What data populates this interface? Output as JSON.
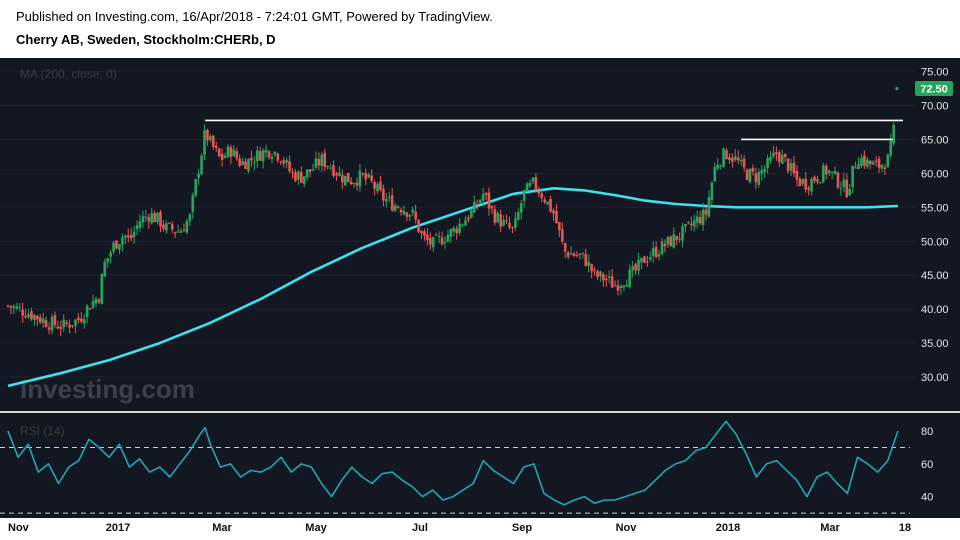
{
  "header": {
    "published": "Published on Investing.com, 16/Apr/2018 - 7:24:01 GMT, Powered by TradingView.",
    "instrument": "Cherry AB, Sweden, Stockholm:CHERb, D"
  },
  "price_panel": {
    "indicator_label": "MA (200, close, 0)",
    "watermark": "Investing.com",
    "last_price_tag": "72.50"
  },
  "rsi_panel": {
    "indicator_label": "RSI (14)"
  },
  "colors": {
    "background": "#131722",
    "up": "#26a65b",
    "down": "#ef5350",
    "ma": "#3fe0f0",
    "rsi": "#1fa8b0",
    "price_tag": "#26a65b"
  },
  "chart_data": [
    {
      "type": "candlestick",
      "scale": "linear",
      "ylim": [
        25,
        77
      ],
      "y_ticks": [
        "30.00",
        "35.00",
        "40.00",
        "45.00",
        "50.00",
        "55.00",
        "60.00",
        "65.00",
        "70.00",
        "75.00"
      ],
      "x_ticks": [
        "Nov",
        "2017",
        "Mar",
        "May",
        "Jul",
        "Sep",
        "Nov",
        "2018",
        "Mar",
        "18"
      ],
      "series": [
        {
          "name": "Price",
          "values": [
            [
              0,
              40.5
            ],
            [
              4,
              39.5
            ],
            [
              8,
              38.0
            ],
            [
              11,
              37.5
            ],
            [
              14,
              38.5
            ],
            [
              16,
              40.5
            ],
            [
              18,
              42.0
            ],
            [
              19,
              46.5
            ],
            [
              21,
              49.5
            ],
            [
              23,
              51.0
            ],
            [
              24,
              50.0
            ],
            [
              26,
              53.0
            ],
            [
              28,
              54.0
            ],
            [
              30,
              53.0
            ],
            [
              31,
              52.0
            ],
            [
              34,
              51.5
            ],
            [
              36,
              53.5
            ],
            [
              37,
              58.0
            ],
            [
              38,
              62.0
            ],
            [
              39,
              66.0
            ],
            [
              40,
              64.5
            ],
            [
              42,
              62.0
            ],
            [
              44,
              63.5
            ],
            [
              46,
              61.5
            ],
            [
              48,
              62.0
            ],
            [
              50,
              63.0
            ],
            [
              52,
              63.5
            ],
            [
              54,
              62.5
            ],
            [
              56,
              60.0
            ],
            [
              58,
              59.5
            ],
            [
              60,
              60.5
            ],
            [
              62,
              62.0
            ],
            [
              64,
              61.0
            ],
            [
              66,
              59.5
            ],
            [
              68,
              59.0
            ],
            [
              70,
              59.5
            ],
            [
              72,
              58.5
            ],
            [
              74,
              56.5
            ],
            [
              76,
              55.5
            ],
            [
              78,
              55.0
            ],
            [
              80,
              54.0
            ],
            [
              82,
              50.5
            ],
            [
              84,
              49.5
            ],
            [
              86,
              50.5
            ],
            [
              88,
              51.5
            ],
            [
              90,
              53.0
            ],
            [
              92,
              54.5
            ],
            [
              94,
              57.0
            ],
            [
              96,
              54.0
            ],
            [
              98,
              52.5
            ],
            [
              100,
              51.5
            ],
            [
              102,
              57.0
            ],
            [
              104,
              58.5
            ],
            [
              106,
              56.5
            ],
            [
              108,
              54.0
            ],
            [
              110,
              48.5
            ],
            [
              112,
              48.0
            ],
            [
              114,
              47.5
            ],
            [
              116,
              45.0
            ],
            [
              118,
              44.5
            ],
            [
              120,
              43.5
            ],
            [
              122,
              44.5
            ],
            [
              124,
              45.5
            ],
            [
              126,
              47.5
            ],
            [
              128,
              48.5
            ],
            [
              130,
              49.5
            ],
            [
              132,
              50.5
            ],
            [
              134,
              51.5
            ],
            [
              136,
              53.0
            ],
            [
              138,
              54.0
            ],
            [
              139,
              58.0
            ],
            [
              140,
              61.5
            ],
            [
              142,
              63.0
            ],
            [
              144,
              62.0
            ],
            [
              146,
              60.0
            ],
            [
              148,
              59.5
            ],
            [
              150,
              61.0
            ],
            [
              152,
              63.0
            ],
            [
              154,
              61.5
            ],
            [
              156,
              59.0
            ],
            [
              158,
              58.5
            ],
            [
              160,
              59.5
            ],
            [
              162,
              60.5
            ],
            [
              164,
              59.0
            ],
            [
              166,
              57.5
            ],
            [
              168,
              62.5
            ],
            [
              170,
              61.5
            ],
            [
              172,
              61.0
            ],
            [
              174,
              62.0
            ],
            [
              175,
              65.0
            ],
            [
              176,
              72.5
            ]
          ]
        },
        {
          "name": "MA (200, close, 0)",
          "values": [
            [
              0,
              28.7
            ],
            [
              10,
              30.5
            ],
            [
              20,
              32.5
            ],
            [
              30,
              35.0
            ],
            [
              40,
              38.0
            ],
            [
              50,
              41.5
            ],
            [
              60,
              45.5
            ],
            [
              70,
              49.0
            ],
            [
              80,
              52.0
            ],
            [
              90,
              54.5
            ],
            [
              100,
              57.0
            ],
            [
              108,
              57.8
            ],
            [
              114,
              57.5
            ],
            [
              120,
              56.8
            ],
            [
              126,
              56.0
            ],
            [
              132,
              55.5
            ],
            [
              138,
              55.2
            ],
            [
              144,
              55.0
            ],
            [
              150,
              55.0
            ],
            [
              160,
              55.0
            ],
            [
              170,
              55.0
            ],
            [
              176,
              55.2
            ]
          ]
        }
      ],
      "annotations": [
        {
          "type": "hline",
          "y": 67.8,
          "x_from": 39,
          "x_to": 177
        },
        {
          "type": "hline",
          "y": 65.0,
          "x_from": 145,
          "x_to": 175
        }
      ]
    },
    {
      "type": "line",
      "scale": "linear",
      "ylim": [
        27,
        91
      ],
      "y_ticks": [
        "40",
        "60",
        "80"
      ],
      "reference_lines": [
        70,
        30
      ],
      "series": [
        {
          "name": "RSI (14)",
          "values": [
            [
              0,
              80
            ],
            [
              2,
              64
            ],
            [
              4,
              72
            ],
            [
              6,
              55
            ],
            [
              8,
              60
            ],
            [
              10,
              48
            ],
            [
              12,
              58
            ],
            [
              14,
              62
            ],
            [
              16,
              75
            ],
            [
              18,
              70
            ],
            [
              20,
              64
            ],
            [
              22,
              72
            ],
            [
              24,
              58
            ],
            [
              26,
              63
            ],
            [
              28,
              55
            ],
            [
              30,
              58
            ],
            [
              32,
              52
            ],
            [
              34,
              60
            ],
            [
              36,
              68
            ],
            [
              38,
              78
            ],
            [
              39,
              82
            ],
            [
              40,
              72
            ],
            [
              42,
              58
            ],
            [
              44,
              60
            ],
            [
              46,
              52
            ],
            [
              48,
              56
            ],
            [
              50,
              55
            ],
            [
              52,
              58
            ],
            [
              54,
              64
            ],
            [
              56,
              55
            ],
            [
              58,
              60
            ],
            [
              60,
              58
            ],
            [
              62,
              48
            ],
            [
              64,
              40
            ],
            [
              66,
              50
            ],
            [
              68,
              58
            ],
            [
              70,
              52
            ],
            [
              72,
              48
            ],
            [
              74,
              54
            ],
            [
              76,
              55
            ],
            [
              78,
              50
            ],
            [
              80,
              46
            ],
            [
              82,
              40
            ],
            [
              84,
              44
            ],
            [
              86,
              38
            ],
            [
              88,
              40
            ],
            [
              90,
              44
            ],
            [
              92,
              48
            ],
            [
              94,
              62
            ],
            [
              96,
              56
            ],
            [
              98,
              52
            ],
            [
              100,
              48
            ],
            [
              102,
              58
            ],
            [
              104,
              60
            ],
            [
              106,
              42
            ],
            [
              108,
              38
            ],
            [
              110,
              35
            ],
            [
              112,
              38
            ],
            [
              114,
              40
            ],
            [
              116,
              36
            ],
            [
              118,
              38
            ],
            [
              120,
              38
            ],
            [
              122,
              40
            ],
            [
              124,
              42
            ],
            [
              126,
              44
            ],
            [
              128,
              50
            ],
            [
              130,
              56
            ],
            [
              132,
              60
            ],
            [
              134,
              62
            ],
            [
              136,
              68
            ],
            [
              138,
              70
            ],
            [
              140,
              78
            ],
            [
              142,
              86
            ],
            [
              144,
              78
            ],
            [
              146,
              66
            ],
            [
              148,
              52
            ],
            [
              150,
              60
            ],
            [
              152,
              62
            ],
            [
              154,
              56
            ],
            [
              156,
              50
            ],
            [
              158,
              40
            ],
            [
              160,
              52
            ],
            [
              162,
              55
            ],
            [
              164,
              48
            ],
            [
              166,
              42
            ],
            [
              168,
              64
            ],
            [
              170,
              60
            ],
            [
              172,
              55
            ],
            [
              174,
              62
            ],
            [
              176,
              80
            ]
          ]
        }
      ]
    }
  ]
}
